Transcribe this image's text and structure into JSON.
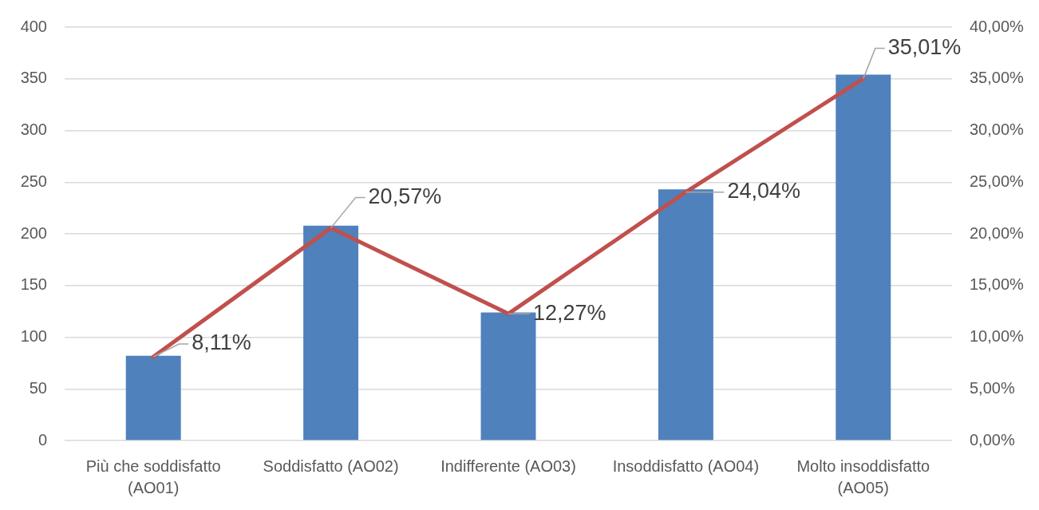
{
  "chart_data": {
    "type": "bar",
    "categories": [
      "Più che soddisfatto (AO01)",
      "Soddisfatto (AO02)",
      "Indifferente (AO03)",
      "Insoddisfatto (AO04)",
      "Molto insoddisfatto (AO05)"
    ],
    "series": [
      {
        "color": "#4f81bd",
        "values": [
          82,
          208,
          124,
          243,
          354
        ]
      },
      {
        "type": "line",
        "axis": "y2",
        "color": "#c0504d",
        "values": [
          8.11,
          20.57,
          12.27,
          24.04,
          35.01
        ],
        "value_labels": [
          "8,11%",
          "20,57%",
          "12,27%",
          "24,04%",
          "35,01%"
        ]
      }
    ],
    "ylim": [
      0,
      400
    ],
    "yticks": [
      0,
      50,
      100,
      150,
      200,
      250,
      300,
      350,
      400
    ],
    "y2lim": [
      0,
      40
    ],
    "y2ticks": [
      {
        "value": 0,
        "label": "0,00%"
      },
      {
        "value": 5,
        "label": "5,00%"
      },
      {
        "value": 10,
        "label": "10,00%"
      },
      {
        "value": 15,
        "label": "15,00%"
      },
      {
        "value": 20,
        "label": "20,00%"
      },
      {
        "value": 25,
        "label": "25,00%"
      },
      {
        "value": 30,
        "label": "30,00%"
      },
      {
        "value": 35,
        "label": "35,00%"
      },
      {
        "value": 40,
        "label": "40,00%"
      }
    ],
    "grid": "y",
    "legend": false,
    "marker": "none",
    "line_style": "solid"
  }
}
